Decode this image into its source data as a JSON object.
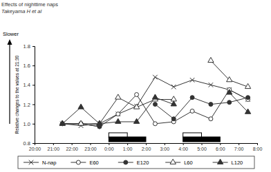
{
  "chart_data": {
    "type": "line",
    "title": "Effects of nighttime naps",
    "subtitle": "Takeyama H et al",
    "y_label": "Relative changes to the values at 21:30",
    "annotations": [
      "Slower"
    ],
    "x": [
      21.5,
      22.5,
      23.5,
      24.5,
      25.5,
      26.5,
      27.5,
      28.5,
      29.5,
      30.5,
      31.5
    ],
    "xlim": [
      20,
      32
    ],
    "xticks": [
      {
        "value": 20,
        "label": "20:00"
      },
      {
        "value": 21,
        "label": "21:00"
      },
      {
        "value": 22,
        "label": "22:00"
      },
      {
        "value": 23,
        "label": "23:00"
      },
      {
        "value": 24,
        "label": "0:00"
      },
      {
        "value": 25,
        "label": "1:00"
      },
      {
        "value": 26,
        "label": "2:00"
      },
      {
        "value": 27,
        "label": "3:00"
      },
      {
        "value": 28,
        "label": "4:00"
      },
      {
        "value": 29,
        "label": "5:00"
      },
      {
        "value": 30,
        "label": "6:00"
      },
      {
        "value": 31,
        "label": "7:00"
      },
      {
        "value": 32,
        "label": "8:00"
      }
    ],
    "ylim": [
      0.8,
      1.8
    ],
    "yticks": [
      0.8,
      {
        "value": 1,
        "label": "1.0"
      },
      1.2,
      1.4,
      1.6,
      1.8
    ],
    "legend": "bottom",
    "series": [
      {
        "name": "N-nap",
        "color": "#333333",
        "marker": "x",
        "values": [
          1.0,
          0.98,
          1.0,
          1.1,
          1.18,
          1.48,
          1.38,
          1.45,
          1.4,
          1.35,
          1.25
        ]
      },
      {
        "name": "E60",
        "color": "#333333",
        "marker": "circle-open",
        "values": [
          1.0,
          1.0,
          0.97,
          1.1,
          1.3,
          1.0,
          1.02,
          1.13,
          1.05,
          1.35,
          1.25
        ]
      },
      {
        "name": "E120",
        "color": "#333333",
        "marker": "circle",
        "values": [
          1.0,
          1.0,
          0.97,
          null,
          null,
          1.2,
          1.05,
          1.27,
          1.2,
          1.22,
          1.27
        ]
      },
      {
        "name": "L60",
        "color": "#333333",
        "marker": "triangle-open",
        "values": [
          1.0,
          1.0,
          1.0,
          1.27,
          1.17,
          1.25,
          1.25,
          null,
          1.65,
          1.45,
          1.38
        ]
      },
      {
        "name": "L120",
        "color": "#333333",
        "marker": "triangle",
        "values": [
          1.0,
          1.17,
          1.0,
          1.02,
          1.02,
          1.27,
          1.2,
          null,
          null,
          1.32,
          1.12
        ]
      }
    ],
    "nap_bars": [
      {
        "start": 24,
        "end": 25,
        "color": "#ffffff"
      },
      {
        "start": 28,
        "end": 29,
        "color": "#ffffff"
      },
      {
        "start": 24,
        "end": 26,
        "color": "#000000"
      },
      {
        "start": 28,
        "end": 30,
        "color": "#000000"
      }
    ]
  }
}
